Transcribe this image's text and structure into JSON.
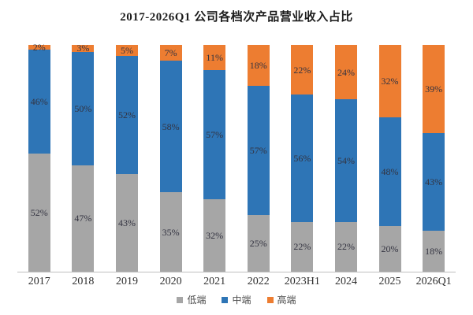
{
  "title": "2017-2026Q1 公司各档次产品营业收入占比",
  "chart_data": {
    "type": "bar",
    "stacked": true,
    "title": "2017-2026Q1 公司各档次产品营业收入占比",
    "categories": [
      "2017",
      "2018",
      "2019",
      "2020",
      "2021",
      "2022",
      "2023H1",
      "2024",
      "2025",
      "2026Q1"
    ],
    "series": [
      {
        "name": "低端",
        "color": "#A6A6A6",
        "values": [
          52,
          47,
          43,
          35,
          32,
          25,
          22,
          22,
          20,
          18
        ]
      },
      {
        "name": "中端",
        "color": "#2E75B6",
        "values": [
          46,
          50,
          52,
          58,
          57,
          57,
          56,
          54,
          48,
          43
        ]
      },
      {
        "name": "高端",
        "color": "#ED7D31",
        "values": [
          2,
          3,
          5,
          7,
          11,
          18,
          22,
          24,
          32,
          39
        ]
      }
    ],
    "value_suffix": "%",
    "ylim": [
      0,
      100
    ],
    "grid": false,
    "legend_position": "bottom"
  },
  "legend": {
    "items": [
      {
        "label": "低端",
        "color": "#A6A6A6"
      },
      {
        "label": "中端",
        "color": "#2E75B6"
      },
      {
        "label": "高端",
        "color": "#ED7D31"
      }
    ]
  },
  "colors": {
    "axis_line": "#bfbfbf",
    "label_text": "#333340",
    "tick_text": "#2e2e2e",
    "title_text": "#1c1c1c"
  }
}
